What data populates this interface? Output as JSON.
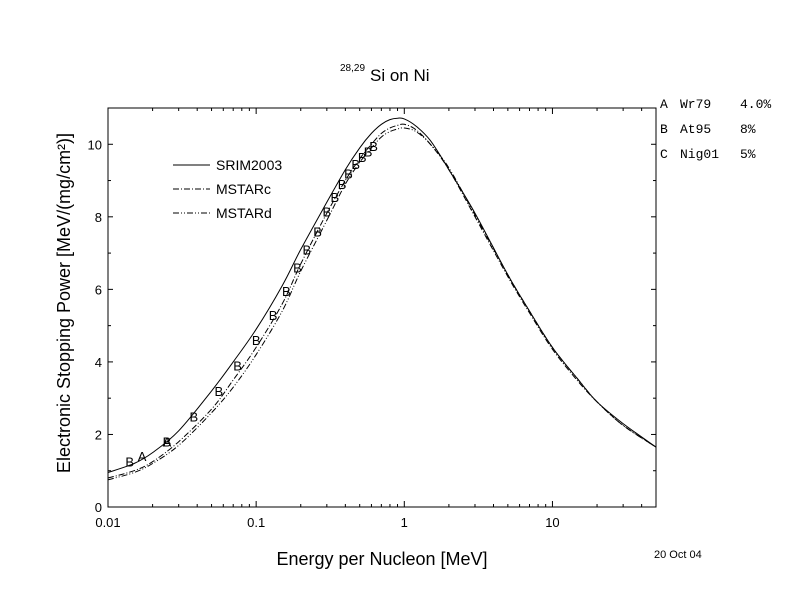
{
  "chart_data": {
    "type": "line",
    "title": {
      "sup": "28,29",
      "main": "Si on Ni"
    },
    "xlabel": "Energy per Nucleon [MeV]",
    "ylabel": "Electronic Stopping Power [MeV/(mg/cm²)]",
    "xscale": "log",
    "xlim": [
      0.01,
      50
    ],
    "ylim": [
      0,
      11
    ],
    "x_ticks": [
      {
        "value": 0.01,
        "label": "0.01"
      },
      {
        "value": 0.1,
        "label": "0.1"
      },
      {
        "value": 1,
        "label": "1"
      },
      {
        "value": 10,
        "label": "10"
      }
    ],
    "y_ticks": [
      {
        "value": 0,
        "label": "0"
      },
      {
        "value": 2,
        "label": "2"
      },
      {
        "value": 4,
        "label": "4"
      },
      {
        "value": 6,
        "label": "6"
      },
      {
        "value": 8,
        "label": "8"
      },
      {
        "value": 10,
        "label": "10"
      }
    ],
    "grid": false,
    "legend_position": "upper-left",
    "series": [
      {
        "name": "SRIM2003",
        "style": "solid",
        "x": [
          0.01,
          0.015,
          0.02,
          0.03,
          0.05,
          0.07,
          0.1,
          0.15,
          0.2,
          0.3,
          0.4,
          0.5,
          0.6,
          0.7,
          0.8,
          0.9,
          1.0,
          1.2,
          1.5,
          2.0,
          3.0,
          5.0,
          7.0,
          10.0,
          15.0,
          20.0,
          30.0,
          50.0
        ],
        "y": [
          0.95,
          1.2,
          1.5,
          2.1,
          3.2,
          4.0,
          4.9,
          6.1,
          7.1,
          8.4,
          9.3,
          9.9,
          10.3,
          10.55,
          10.68,
          10.72,
          10.7,
          10.5,
          10.1,
          9.3,
          8.1,
          6.4,
          5.4,
          4.4,
          3.5,
          2.9,
          2.3,
          1.65
        ]
      },
      {
        "name": "MSTARc",
        "style": "dashdot",
        "x": [
          0.01,
          0.015,
          0.02,
          0.03,
          0.05,
          0.07,
          0.1,
          0.15,
          0.2,
          0.3,
          0.4,
          0.5,
          0.6,
          0.7,
          0.8,
          0.9,
          1.0,
          1.2,
          1.5,
          2.0,
          3.0,
          5.0,
          7.0,
          10.0,
          15.0,
          20.0,
          30.0,
          50.0
        ],
        "y": [
          0.8,
          1.0,
          1.25,
          1.8,
          2.7,
          3.5,
          4.4,
          5.6,
          6.7,
          8.1,
          9.0,
          9.6,
          10.0,
          10.3,
          10.45,
          10.52,
          10.55,
          10.4,
          10.0,
          9.3,
          8.0,
          6.35,
          5.35,
          4.35,
          3.45,
          2.9,
          2.25,
          1.65
        ]
      },
      {
        "name": "MSTARd",
        "style": "dashdotdot",
        "x": [
          0.01,
          0.015,
          0.02,
          0.03,
          0.05,
          0.07,
          0.1,
          0.15,
          0.2,
          0.3,
          0.4,
          0.5,
          0.6,
          0.7,
          0.8,
          0.9,
          1.0,
          1.2,
          1.5,
          2.0,
          3.0,
          5.0,
          7.0,
          10.0,
          15.0,
          20.0,
          30.0,
          50.0
        ],
        "y": [
          0.75,
          0.95,
          1.2,
          1.7,
          2.6,
          3.3,
          4.2,
          5.4,
          6.5,
          7.9,
          8.9,
          9.5,
          9.9,
          10.2,
          10.35,
          10.42,
          10.45,
          10.35,
          10.0,
          9.35,
          8.05,
          6.4,
          5.4,
          4.4,
          3.5,
          2.9,
          2.25,
          1.65
        ]
      }
    ],
    "markers": [
      {
        "label": "A",
        "x": 0.017,
        "y": 1.4
      },
      {
        "label": "A",
        "x": 0.025,
        "y": 1.8
      },
      {
        "label": "B",
        "x": 0.014,
        "y": 1.25
      },
      {
        "label": "B",
        "x": 0.025,
        "y": 1.8
      },
      {
        "label": "B",
        "x": 0.038,
        "y": 2.5
      },
      {
        "label": "B",
        "x": 0.056,
        "y": 3.2
      },
      {
        "label": "B",
        "x": 0.075,
        "y": 3.9
      },
      {
        "label": "B",
        "x": 0.1,
        "y": 4.6
      },
      {
        "label": "B",
        "x": 0.13,
        "y": 5.3
      },
      {
        "label": "B",
        "x": 0.16,
        "y": 5.95
      },
      {
        "label": "B",
        "x": 0.19,
        "y": 6.6
      },
      {
        "label": "B",
        "x": 0.22,
        "y": 7.1
      },
      {
        "label": "B",
        "x": 0.26,
        "y": 7.6
      },
      {
        "label": "B",
        "x": 0.3,
        "y": 8.15
      },
      {
        "label": "B",
        "x": 0.34,
        "y": 8.55
      },
      {
        "label": "B",
        "x": 0.38,
        "y": 8.9
      },
      {
        "label": "B",
        "x": 0.42,
        "y": 9.2
      },
      {
        "label": "B",
        "x": 0.47,
        "y": 9.45
      },
      {
        "label": "B",
        "x": 0.52,
        "y": 9.65
      },
      {
        "label": "B",
        "x": 0.57,
        "y": 9.8
      },
      {
        "label": "B",
        "x": 0.62,
        "y": 9.95
      }
    ],
    "data_sources": [
      {
        "code": "A",
        "ref": "Wr79",
        "error": "4.0%"
      },
      {
        "code": "B",
        "ref": "At95",
        "error": "8%"
      },
      {
        "code": "C",
        "ref": "Nig01",
        "error": "5%"
      }
    ]
  },
  "footer": {
    "date": "20 Oct 04"
  }
}
